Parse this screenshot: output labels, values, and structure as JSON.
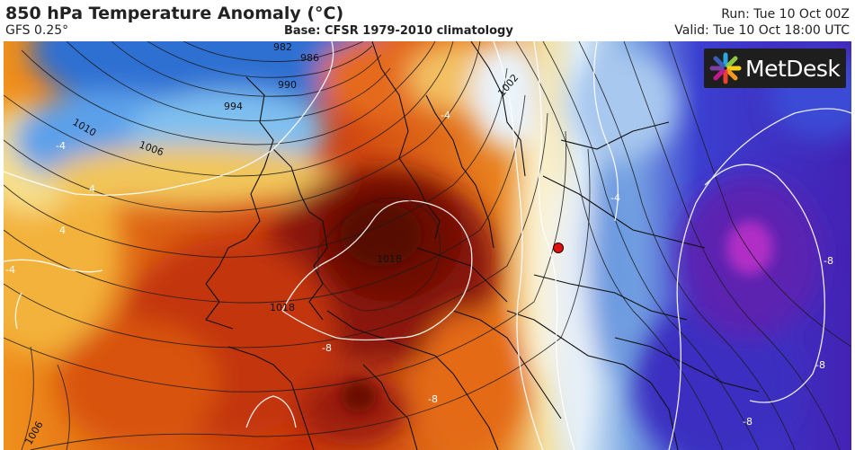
{
  "header": {
    "title": "850 hPa Temperature Anomaly (°C)",
    "model": "GFS 0.25°",
    "base": "Base: CFSR 1979-2010 climatology",
    "run": "Run: Tue 10 Oct 00Z",
    "valid": "Valid: Tue 10 Oct 18:00 UTC"
  },
  "branding": {
    "logo_text": "MetDesk"
  },
  "map": {
    "isobar_labels": [
      "982",
      "986",
      "990",
      "994",
      "1010",
      "1006",
      "1002",
      "1018",
      "1018",
      "1006"
    ],
    "anomaly_labels": [
      "-4",
      "4",
      "-4",
      "4",
      "-4",
      "-8",
      "-8",
      "-8",
      "-8",
      "-8",
      "-4"
    ],
    "marker_color": "#e01010"
  }
}
